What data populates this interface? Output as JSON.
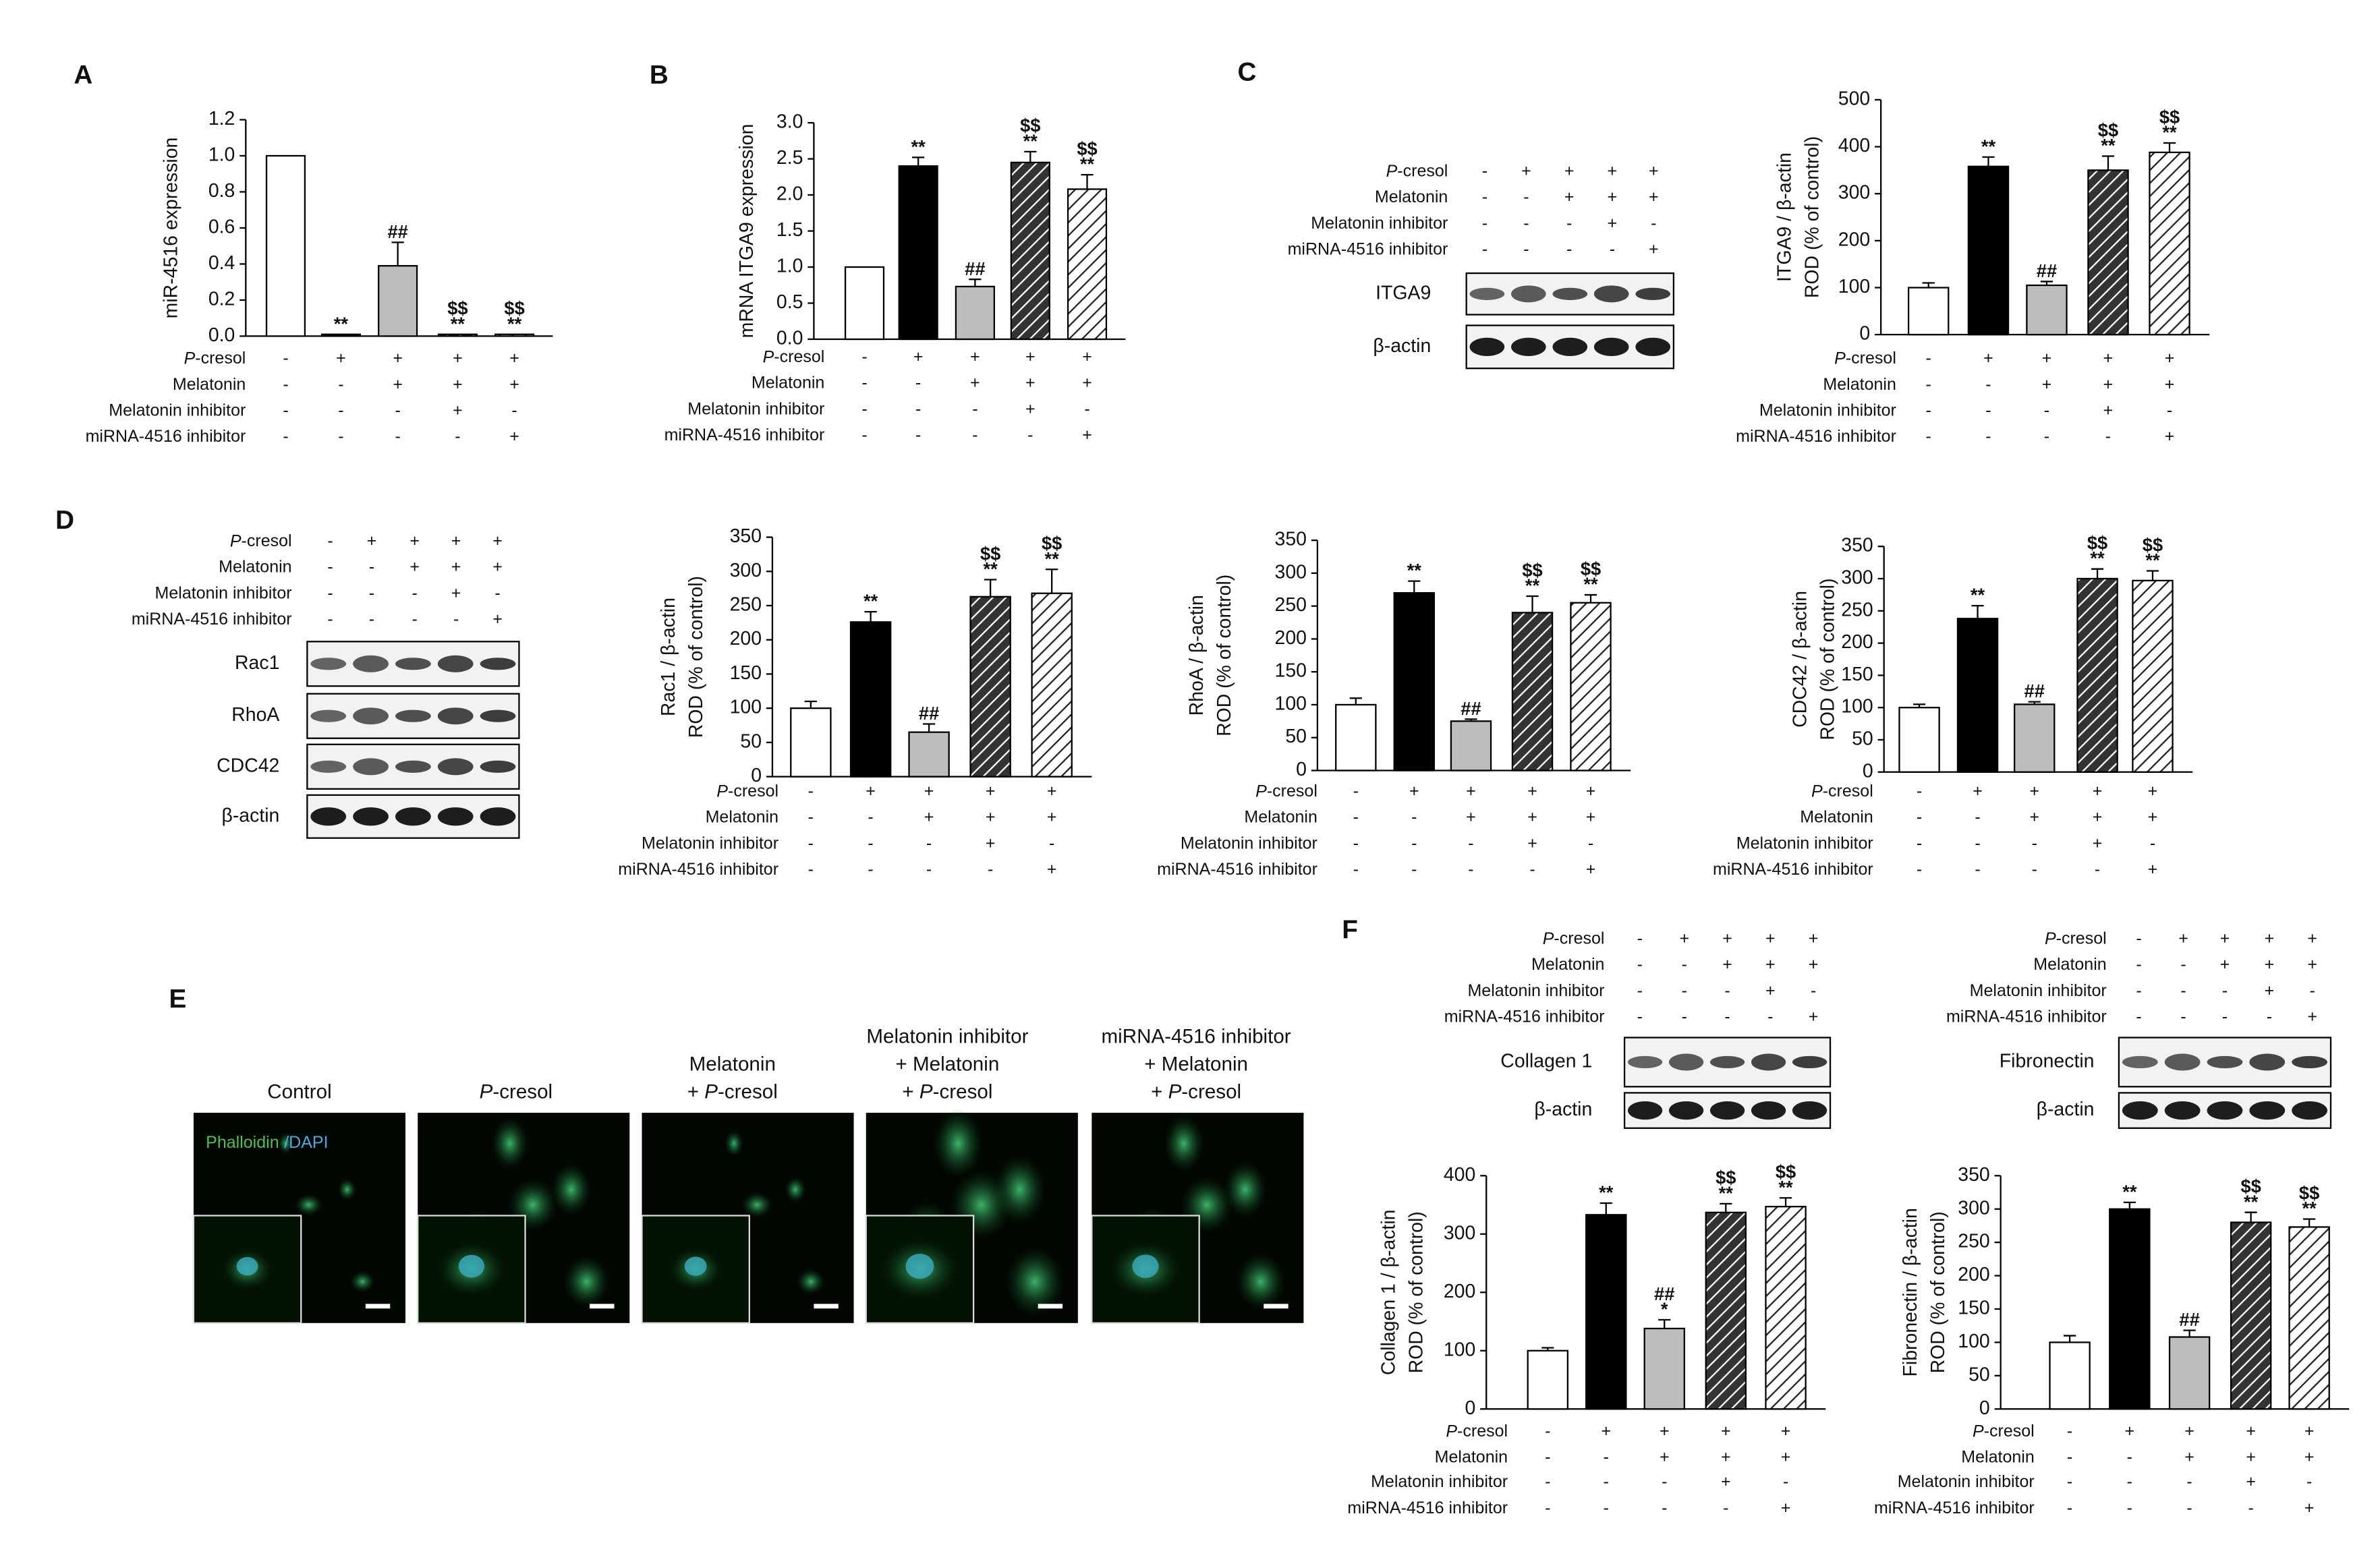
{
  "panel_labels": [
    "A",
    "B",
    "C",
    "D",
    "E",
    "F"
  ],
  "chart_data": [
    {
      "type": "bar",
      "ylabel": [
        "miR-4516 expression"
      ],
      "values": [
        1.0,
        0.01,
        0.39,
        0.01,
        0.01
      ],
      "errors": [
        0,
        0,
        0.13,
        0,
        0
      ],
      "annotations": [
        null,
        [
          "**"
        ],
        [
          "##"
        ],
        [
          "$$",
          "**"
        ],
        [
          "$$",
          "**"
        ]
      ],
      "bar_styles": [
        "white",
        "black",
        "gray",
        "hatch",
        "hatch-light"
      ],
      "ylim": [
        0,
        1.2
      ],
      "yticks": [
        {
          "value": 0,
          "label": "0.0"
        },
        0.2,
        0.4,
        0.6,
        0.8,
        {
          "value": 1,
          "label": "1.0"
        },
        1.2
      ],
      "treatments": [
        {
          "name": "P-cresol",
          "signs": [
            "-",
            "+",
            "+",
            "+",
            "+"
          ]
        },
        {
          "name": "Melatonin",
          "signs": [
            "-",
            "-",
            "+",
            "+",
            "+"
          ]
        },
        {
          "name": "Melatonin inhibitor",
          "signs": [
            "-",
            "-",
            "-",
            "+",
            "-"
          ]
        },
        {
          "name": "miRNA-4516 inhibitor",
          "signs": [
            "-",
            "-",
            "-",
            "-",
            "+"
          ]
        }
      ]
    },
    {
      "type": "bar",
      "ylabel": [
        "mRNA ITGA9 expression"
      ],
      "values": [
        1.0,
        2.4,
        0.73,
        2.45,
        2.08
      ],
      "errors": [
        0,
        0.12,
        0.1,
        0.15,
        0.2
      ],
      "annotations": [
        null,
        [
          "**"
        ],
        [
          "##"
        ],
        [
          "$$",
          "**"
        ],
        [
          "$$",
          "**"
        ]
      ],
      "bar_styles": [
        "white",
        "black",
        "gray",
        "hatch",
        "hatch-light"
      ],
      "ylim": [
        0,
        3
      ],
      "yticks": [
        {
          "value": 0,
          "label": "0.0"
        },
        0.5,
        {
          "value": 1,
          "label": "1.0"
        },
        1.5,
        {
          "value": 2,
          "label": "2.0"
        },
        2.5,
        {
          "value": 3,
          "label": "3.0"
        }
      ],
      "treatments": [
        {
          "name": "P-cresol",
          "signs": [
            "-",
            "+",
            "+",
            "+",
            "+"
          ]
        },
        {
          "name": "Melatonin",
          "signs": [
            "-",
            "-",
            "+",
            "+",
            "+"
          ]
        },
        {
          "name": "Melatonin inhibitor",
          "signs": [
            "-",
            "-",
            "-",
            "+",
            "-"
          ]
        },
        {
          "name": "miRNA-4516 inhibitor",
          "signs": [
            "-",
            "-",
            "-",
            "-",
            "+"
          ]
        }
      ]
    },
    {
      "type": "bar",
      "ylabel": [
        "ITGA9 / β-actin",
        "ROD (% of control)"
      ],
      "values": [
        100,
        358,
        105,
        350,
        388
      ],
      "errors": [
        10,
        20,
        8,
        30,
        20
      ],
      "annotations": [
        null,
        [
          "**"
        ],
        [
          "##"
        ],
        [
          "$$",
          "**"
        ],
        [
          "$$",
          "**"
        ]
      ],
      "bar_styles": [
        "white",
        "black",
        "gray",
        "hatch",
        "hatch-light"
      ],
      "ylim": [
        0,
        500
      ],
      "yticks": [
        0,
        100,
        200,
        300,
        400,
        500
      ],
      "treatments": [
        {
          "name": "P-cresol",
          "signs": [
            "-",
            "+",
            "+",
            "+",
            "+"
          ]
        },
        {
          "name": "Melatonin",
          "signs": [
            "-",
            "-",
            "+",
            "+",
            "+"
          ]
        },
        {
          "name": "Melatonin inhibitor",
          "signs": [
            "-",
            "-",
            "-",
            "+",
            "-"
          ]
        },
        {
          "name": "miRNA-4516 inhibitor",
          "signs": [
            "-",
            "-",
            "-",
            "-",
            "+"
          ]
        }
      ]
    },
    {
      "type": "bar",
      "ylabel": [
        "Rac1 / β-actin",
        "ROD (% of control)"
      ],
      "values": [
        100,
        226,
        65,
        263,
        268
      ],
      "errors": [
        10,
        15,
        12,
        25,
        35
      ],
      "annotations": [
        null,
        [
          "**"
        ],
        [
          "##"
        ],
        [
          "$$",
          "**"
        ],
        [
          "$$",
          "**"
        ]
      ],
      "bar_styles": [
        "white",
        "black",
        "gray",
        "hatch",
        "hatch-light"
      ],
      "ylim": [
        0,
        350
      ],
      "yticks": [
        0,
        50,
        100,
        150,
        200,
        250,
        300,
        350
      ],
      "treatments": [
        {
          "name": "P-cresol",
          "signs": [
            "-",
            "+",
            "+",
            "+",
            "+"
          ]
        },
        {
          "name": "Melatonin",
          "signs": [
            "-",
            "-",
            "+",
            "+",
            "+"
          ]
        },
        {
          "name": "Melatonin inhibitor",
          "signs": [
            "-",
            "-",
            "-",
            "+",
            "-"
          ]
        },
        {
          "name": "miRNA-4516 inhibitor",
          "signs": [
            "-",
            "-",
            "-",
            "-",
            "+"
          ]
        }
      ]
    },
    {
      "type": "bar",
      "ylabel": [
        "RhoA / β-actin",
        "ROD (% of control)"
      ],
      "values": [
        100,
        270,
        75,
        240,
        255
      ],
      "errors": [
        10,
        18,
        3,
        25,
        12
      ],
      "annotations": [
        null,
        [
          "**"
        ],
        [
          "##"
        ],
        [
          "$$",
          "**"
        ],
        [
          "$$",
          "**"
        ]
      ],
      "bar_styles": [
        "white",
        "black",
        "gray",
        "hatch",
        "hatch-light"
      ],
      "ylim": [
        0,
        350
      ],
      "yticks": [
        0,
        50,
        100,
        150,
        200,
        250,
        300,
        350
      ],
      "treatments": [
        {
          "name": "P-cresol",
          "signs": [
            "-",
            "+",
            "+",
            "+",
            "+"
          ]
        },
        {
          "name": "Melatonin",
          "signs": [
            "-",
            "-",
            "+",
            "+",
            "+"
          ]
        },
        {
          "name": "Melatonin inhibitor",
          "signs": [
            "-",
            "-",
            "-",
            "+",
            "-"
          ]
        },
        {
          "name": "miRNA-4516 inhibitor",
          "signs": [
            "-",
            "-",
            "-",
            "-",
            "+"
          ]
        }
      ]
    },
    {
      "type": "bar",
      "ylabel": [
        "CDC42 / β-actin",
        "ROD (% of control)"
      ],
      "values": [
        100,
        238,
        105,
        300,
        297
      ],
      "errors": [
        5,
        20,
        4,
        15,
        15
      ],
      "annotations": [
        null,
        [
          "**"
        ],
        [
          "##"
        ],
        [
          "$$",
          "**"
        ],
        [
          "$$",
          "**"
        ]
      ],
      "bar_styles": [
        "white",
        "black",
        "gray",
        "hatch",
        "hatch-light"
      ],
      "ylim": [
        0,
        350
      ],
      "yticks": [
        0,
        50,
        100,
        150,
        200,
        250,
        300,
        350
      ],
      "treatments": [
        {
          "name": "P-cresol",
          "signs": [
            "-",
            "+",
            "+",
            "+",
            "+"
          ]
        },
        {
          "name": "Melatonin",
          "signs": [
            "-",
            "-",
            "+",
            "+",
            "+"
          ]
        },
        {
          "name": "Melatonin inhibitor",
          "signs": [
            "-",
            "-",
            "-",
            "+",
            "-"
          ]
        },
        {
          "name": "miRNA-4516 inhibitor",
          "signs": [
            "-",
            "-",
            "-",
            "-",
            "+"
          ]
        }
      ]
    },
    {
      "type": "bar",
      "ylabel": [
        "Collagen 1 / β-actin",
        "ROD (% of control)"
      ],
      "values": [
        100,
        333,
        138,
        337,
        347
      ],
      "errors": [
        5,
        20,
        15,
        15,
        15
      ],
      "annotations": [
        null,
        [
          "**"
        ],
        [
          "##",
          "*"
        ],
        [
          "$$",
          "**"
        ],
        [
          "$$",
          "**"
        ]
      ],
      "bar_styles": [
        "white",
        "black",
        "gray",
        "hatch",
        "hatch-light"
      ],
      "ylim": [
        0,
        400
      ],
      "yticks": [
        0,
        100,
        200,
        300,
        400
      ],
      "treatments": [
        {
          "name": "P-cresol",
          "signs": [
            "-",
            "+",
            "+",
            "+",
            "+"
          ]
        },
        {
          "name": "Melatonin",
          "signs": [
            "-",
            "-",
            "+",
            "+",
            "+"
          ]
        },
        {
          "name": "Melatonin inhibitor",
          "signs": [
            "-",
            "-",
            "-",
            "+",
            "-"
          ]
        },
        {
          "name": "miRNA-4516 inhibitor",
          "signs": [
            "-",
            "-",
            "-",
            "-",
            "+"
          ]
        }
      ]
    },
    {
      "type": "bar",
      "ylabel": [
        "Fibronectin / β-actin",
        "ROD (% of control)"
      ],
      "values": [
        100,
        300,
        108,
        280,
        273
      ],
      "errors": [
        10,
        10,
        10,
        15,
        12
      ],
      "annotations": [
        null,
        [
          "**"
        ],
        [
          "##"
        ],
        [
          "$$",
          "**"
        ],
        [
          "$$",
          "**"
        ]
      ],
      "bar_styles": [
        "white",
        "black",
        "gray",
        "hatch",
        "hatch-light"
      ],
      "ylim": [
        0,
        350
      ],
      "yticks": [
        0,
        50,
        100,
        150,
        200,
        250,
        300,
        350
      ],
      "treatments": [
        {
          "name": "P-cresol",
          "signs": [
            "-",
            "+",
            "+",
            "+",
            "+"
          ]
        },
        {
          "name": "Melatonin",
          "signs": [
            "-",
            "-",
            "+",
            "+",
            "+"
          ]
        },
        {
          "name": "Melatonin inhibitor",
          "signs": [
            "-",
            "-",
            "-",
            "+",
            "-"
          ]
        },
        {
          "name": "miRNA-4516 inhibitor",
          "signs": [
            "-",
            "-",
            "-",
            "-",
            "+"
          ]
        }
      ]
    }
  ],
  "blots": [
    {
      "rows": [
        "ITGA9",
        "β-actin"
      ],
      "treatments": [
        {
          "name": "P-cresol",
          "signs": [
            "-",
            "+",
            "+",
            "+",
            "+"
          ]
        },
        {
          "name": "Melatonin",
          "signs": [
            "-",
            "-",
            "+",
            "+",
            "+"
          ]
        },
        {
          "name": "Melatonin inhibitor",
          "signs": [
            "-",
            "-",
            "-",
            "+",
            "-"
          ]
        },
        {
          "name": "miRNA-4516 inhibitor",
          "signs": [
            "-",
            "-",
            "-",
            "-",
            "+"
          ]
        }
      ]
    },
    {
      "rows": [
        "Rac1",
        "RhoA",
        "CDC42",
        "β-actin"
      ],
      "treatments": [
        {
          "name": "P-cresol",
          "signs": [
            "-",
            "+",
            "+",
            "+",
            "+"
          ]
        },
        {
          "name": "Melatonin",
          "signs": [
            "-",
            "-",
            "+",
            "+",
            "+"
          ]
        },
        {
          "name": "Melatonin inhibitor",
          "signs": [
            "-",
            "-",
            "-",
            "+",
            "-"
          ]
        },
        {
          "name": "miRNA-4516 inhibitor",
          "signs": [
            "-",
            "-",
            "-",
            "-",
            "+"
          ]
        }
      ]
    },
    {
      "rows": [
        "Collagen 1",
        "β-actin"
      ],
      "treatments": [
        {
          "name": "P-cresol",
          "signs": [
            "-",
            "+",
            "+",
            "+",
            "+"
          ]
        },
        {
          "name": "Melatonin",
          "signs": [
            "-",
            "-",
            "+",
            "+",
            "+"
          ]
        },
        {
          "name": "Melatonin inhibitor",
          "signs": [
            "-",
            "-",
            "-",
            "+",
            "-"
          ]
        },
        {
          "name": "miRNA-4516 inhibitor",
          "signs": [
            "-",
            "-",
            "-",
            "-",
            "+"
          ]
        }
      ]
    },
    {
      "rows": [
        "Fibronectin",
        "β-actin"
      ],
      "treatments": [
        {
          "name": "P-cresol",
          "signs": [
            "-",
            "+",
            "+",
            "+",
            "+"
          ]
        },
        {
          "name": "Melatonin",
          "signs": [
            "-",
            "-",
            "+",
            "+",
            "+"
          ]
        },
        {
          "name": "Melatonin inhibitor",
          "signs": [
            "-",
            "-",
            "-",
            "+",
            "-"
          ]
        },
        {
          "name": "miRNA-4516 inhibitor",
          "signs": [
            "-",
            "-",
            "-",
            "-",
            "+"
          ]
        }
      ]
    }
  ],
  "microscopy": {
    "stain": [
      "Phalloidin",
      "/DAPI"
    ],
    "titles": [
      [
        "Control"
      ],
      [
        "P-cresol"
      ],
      [
        "Melatonin",
        "+ P-cresol"
      ],
      [
        "Melatonin inhibitor",
        "+ Melatonin",
        "+ P-cresol"
      ],
      [
        "miRNA-4516 inhibitor",
        "+ Melatonin",
        "+ P-cresol"
      ]
    ]
  }
}
